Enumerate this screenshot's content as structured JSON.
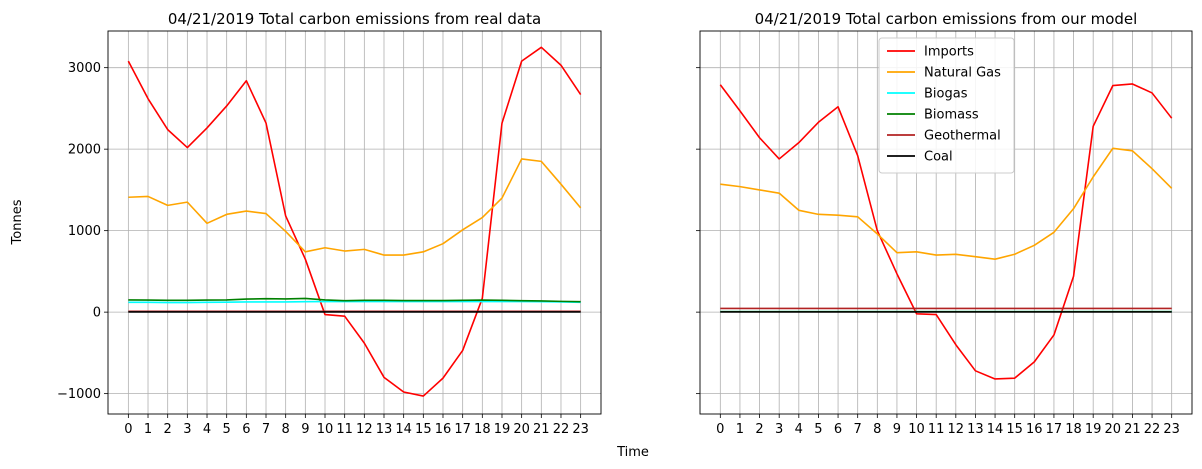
{
  "figure": {
    "ylabel": "Tonnes",
    "xlabel": "Time"
  },
  "chart_data": [
    {
      "type": "line",
      "title": "04/21/2019 Total carbon emissions from real data",
      "x": [
        0,
        1,
        2,
        3,
        4,
        5,
        6,
        7,
        8,
        9,
        10,
        11,
        12,
        13,
        14,
        15,
        16,
        17,
        18,
        19,
        20,
        21,
        22,
        23
      ],
      "xticks": [
        "0",
        "1",
        "2",
        "3",
        "4",
        "5",
        "6",
        "7",
        "8",
        "9",
        "10",
        "11",
        "12",
        "13",
        "14",
        "15",
        "16",
        "17",
        "18",
        "19",
        "20",
        "21",
        "22",
        "23"
      ],
      "ylim": [
        -1250,
        3450
      ],
      "yticks": [
        -1000,
        0,
        1000,
        2000,
        3000
      ],
      "ytick_labels": [
        "−1000",
        "0",
        "1000",
        "2000",
        "3000"
      ],
      "grid": true,
      "series": [
        {
          "name": "Imports",
          "color": "#ff0000",
          "values": [
            3080,
            2620,
            2240,
            2020,
            2260,
            2530,
            2840,
            2320,
            1180,
            650,
            -30,
            -50,
            -380,
            -800,
            -980,
            -1030,
            -810,
            -470,
            170,
            2320,
            3080,
            3250,
            3030,
            2670
          ]
        },
        {
          "name": "Natural Gas",
          "color": "#ffa500",
          "values": [
            1410,
            1420,
            1310,
            1350,
            1090,
            1200,
            1240,
            1210,
            990,
            740,
            790,
            750,
            770,
            700,
            700,
            740,
            840,
            1010,
            1160,
            1400,
            1880,
            1850,
            1570,
            1280
          ]
        },
        {
          "name": "Biogas",
          "color": "#00ffff",
          "values": [
            120,
            120,
            118,
            118,
            120,
            122,
            125,
            125,
            125,
            128,
            130,
            130,
            130,
            130,
            130,
            130,
            130,
            130,
            130,
            130,
            130,
            128,
            125,
            120
          ]
        },
        {
          "name": "Biomass",
          "color": "#008000",
          "values": [
            150,
            148,
            145,
            145,
            148,
            150,
            160,
            165,
            162,
            168,
            150,
            140,
            145,
            145,
            142,
            142,
            142,
            145,
            148,
            145,
            140,
            138,
            132,
            128
          ]
        },
        {
          "name": "Geothermal",
          "color": "#b22222",
          "values": [
            10,
            10,
            10,
            10,
            10,
            10,
            10,
            10,
            10,
            10,
            10,
            10,
            10,
            10,
            10,
            10,
            10,
            10,
            10,
            10,
            10,
            10,
            10,
            10
          ]
        },
        {
          "name": "Coal",
          "color": "#000000",
          "values": [
            2,
            2,
            2,
            2,
            2,
            2,
            2,
            2,
            2,
            2,
            2,
            2,
            2,
            2,
            2,
            2,
            2,
            2,
            2,
            2,
            2,
            2,
            2,
            2
          ]
        }
      ]
    },
    {
      "type": "line",
      "title": "04/21/2019 Total carbon emissions from our model",
      "x": [
        0,
        1,
        2,
        3,
        4,
        5,
        6,
        7,
        8,
        9,
        10,
        11,
        12,
        13,
        14,
        15,
        16,
        17,
        18,
        19,
        20,
        21,
        22,
        23
      ],
      "xticks": [
        "0",
        "1",
        "2",
        "3",
        "4",
        "5",
        "6",
        "7",
        "8",
        "9",
        "10",
        "11",
        "12",
        "13",
        "14",
        "15",
        "16",
        "17",
        "18",
        "19",
        "20",
        "21",
        "22",
        "23"
      ],
      "ylim": [
        -1250,
        3450
      ],
      "grid": true,
      "legend": "top-center",
      "series": [
        {
          "name": "Imports",
          "color": "#ff0000",
          "values": [
            2790,
            2470,
            2140,
            1880,
            2080,
            2330,
            2520,
            1920,
            1000,
            470,
            -20,
            -30,
            -400,
            -720,
            -820,
            -810,
            -610,
            -280,
            440,
            2280,
            2780,
            2800,
            2690,
            2380
          ]
        },
        {
          "name": "Natural Gas",
          "color": "#ffa500",
          "values": [
            1570,
            1540,
            1500,
            1460,
            1250,
            1200,
            1190,
            1170,
            960,
            730,
            740,
            700,
            710,
            680,
            650,
            710,
            820,
            980,
            1270,
            1660,
            2010,
            1980,
            1760,
            1520
          ]
        },
        {
          "name": "Biogas",
          "color": "#00ffff",
          "values": [
            5,
            5,
            5,
            5,
            5,
            5,
            5,
            5,
            5,
            5,
            5,
            5,
            5,
            5,
            5,
            5,
            5,
            5,
            5,
            5,
            5,
            5,
            5,
            5
          ]
        },
        {
          "name": "Biomass",
          "color": "#008000",
          "values": [
            5,
            5,
            5,
            5,
            5,
            5,
            5,
            5,
            5,
            5,
            5,
            5,
            5,
            5,
            5,
            5,
            5,
            5,
            5,
            5,
            5,
            5,
            5,
            5
          ]
        },
        {
          "name": "Geothermal",
          "color": "#b22222",
          "values": [
            45,
            45,
            45,
            45,
            45,
            45,
            45,
            45,
            45,
            45,
            45,
            45,
            45,
            45,
            45,
            45,
            45,
            45,
            45,
            45,
            45,
            45,
            45,
            45
          ]
        },
        {
          "name": "Coal",
          "color": "#000000",
          "values": [
            2,
            2,
            2,
            2,
            2,
            2,
            2,
            2,
            2,
            2,
            2,
            2,
            2,
            2,
            2,
            2,
            2,
            2,
            2,
            2,
            2,
            2,
            2,
            2
          ]
        }
      ]
    }
  ]
}
